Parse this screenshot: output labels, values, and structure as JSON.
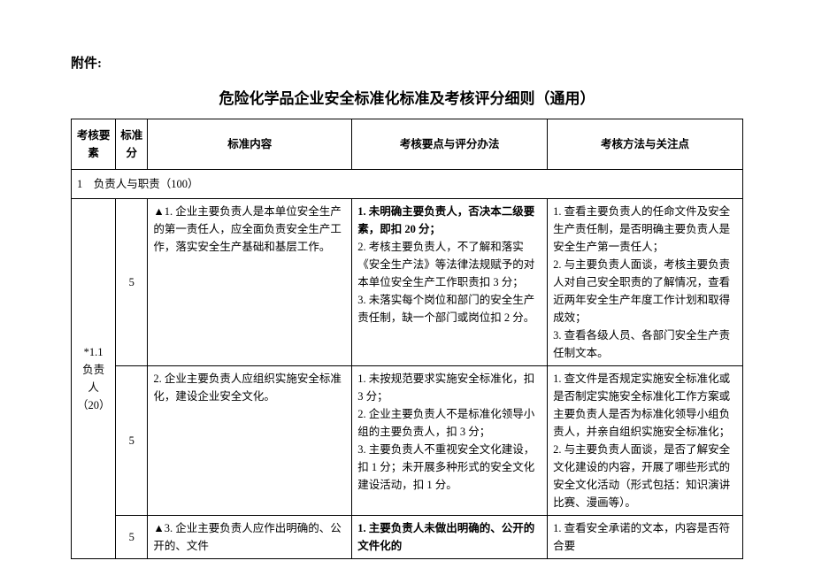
{
  "attachment_label": "附件:",
  "title": "危险化学品企业安全标准化标准及考核评分细则（通用）",
  "headers": {
    "element": "考核要素",
    "score": "标准分",
    "content": "标准内容",
    "points": "考核要点与评分办法",
    "method": "考核方法与关注点"
  },
  "section": "1　负责人与职责（100）",
  "group_label": "*1.1\n负责人\n（20）",
  "rows": [
    {
      "score": "5",
      "content": "▲1. 企业主要负责人是本单位安全生产的第一责任人，应全面负责安全生产工作，落实安全生产基础和基层工作。",
      "points_bold": "1. 未明确主要负责人，否决本二级要素，即扣 20 分；",
      "points_rest": "2. 考核主要负责人，不了解和落实《安全生产法》等法律法规赋予的对本单位安全生产工作职责扣 3 分；\n3. 未落实每个岗位和部门的安全生产责任制，缺一个部门或岗位扣 2 分。",
      "method": "1. 查看主要负责人的任命文件及安全生产责任制，是否明确主要负责人是安全生产第一责任人；\n2. 与主要负责人面谈，考核主要负责人对自己安全职责的了解情况，查看近两年安全生产年度工作计划和取得成效；\n3. 查看各级人员、各部门安全生产责任制文本。"
    },
    {
      "score": "5",
      "content": "2. 企业主要负责人应组织实施安全标准化，建设企业安全文化。",
      "points_bold": "",
      "points_rest": "1. 未按规范要求实施安全标准化，扣 3 分；\n2. 企业主要负责人不是标准化领导小组的主要负责人，扣 3 分；\n3. 主要负责人不重视安全文化建设，扣 1 分；未开展多种形式的安全文化建设活动，扣 1 分。",
      "method": "1. 查文件是否规定实施安全标准化或是否制定实施安全标准化工作方案或主要负责人是否为标准化领导小组负责人，并亲自组织实施安全标准化；\n2. 与主要负责人面谈，是否了解安全文化建设的内容，开展了哪些形式的安全文化活动（形式包括：知识演讲比赛、漫画等）。"
    },
    {
      "score": "5",
      "content": "▲3. 企业主要负责人应作出明确的、公开的、文件",
      "points_bold": "1. 主要负责人未做出明确的、公开的文件化的",
      "points_rest": "",
      "method": "1. 查看安全承诺的文本，内容是否符合要"
    }
  ]
}
